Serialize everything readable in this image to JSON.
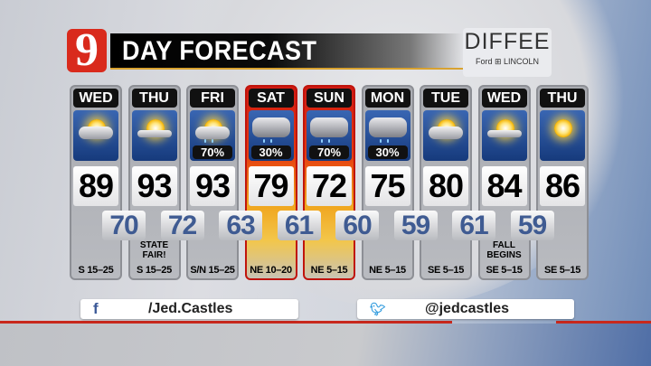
{
  "header": {
    "logo": "9",
    "title": "DAY FORECAST",
    "sponsor": {
      "name": "DIFFEE",
      "brands": "Ford ⊞ LINCOLN"
    }
  },
  "colors": {
    "alert": "#d01a12",
    "low_text": "#3f5b92",
    "brand_red": "#d92a1c"
  },
  "days": [
    {
      "day": "WED",
      "icon": "partly-sunny-icon",
      "pop": "",
      "high": "89",
      "note": "",
      "wind": "S 15–25",
      "alert": false
    },
    {
      "day": "THU",
      "icon": "mostly-sunny-icon",
      "pop": "",
      "high": "93",
      "note": "STATE FAIR!",
      "wind": "S 15–25",
      "alert": false
    },
    {
      "day": "FRI",
      "icon": "sun-storm-icon",
      "pop": "70%",
      "high": "93",
      "note": "",
      "wind": "S/N 15–25",
      "alert": false
    },
    {
      "day": "SAT",
      "icon": "cloudy-storm-icon",
      "pop": "30%",
      "high": "79",
      "note": "",
      "wind": "NE 10–20",
      "alert": true
    },
    {
      "day": "SUN",
      "icon": "cloudy-storm-icon",
      "pop": "70%",
      "high": "72",
      "note": "",
      "wind": "NE 5–15",
      "alert": true
    },
    {
      "day": "MON",
      "icon": "cloudy-rain-icon",
      "pop": "30%",
      "high": "75",
      "note": "",
      "wind": "NE 5–15",
      "alert": false
    },
    {
      "day": "TUE",
      "icon": "partly-sunny-icon",
      "pop": "",
      "high": "80",
      "note": "",
      "wind": "SE 5–15",
      "alert": false
    },
    {
      "day": "WED",
      "icon": "mostly-sunny-icon",
      "pop": "",
      "high": "84",
      "note": "FALL BEGINS",
      "wind": "SE 5–15",
      "alert": false
    },
    {
      "day": "THU",
      "icon": "sunny-icon",
      "pop": "",
      "high": "86",
      "note": "",
      "wind": "SE 5–15",
      "alert": false
    }
  ],
  "lows": [
    "70",
    "72",
    "63",
    "61",
    "60",
    "59",
    "61",
    "59"
  ],
  "social": {
    "facebook": "/Jed.Castles",
    "twitter": "@jedcastles"
  }
}
